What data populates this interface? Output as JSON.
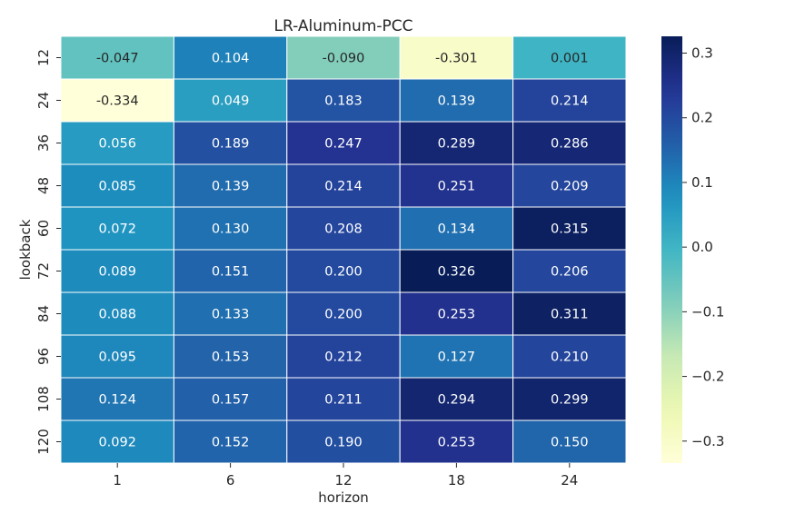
{
  "chart_data": {
    "type": "heatmap",
    "title": "LR-Aluminum-PCC",
    "xlabel": "horizon",
    "ylabel": "lookback",
    "x_categories": [
      "1",
      "6",
      "12",
      "18",
      "24"
    ],
    "y_categories": [
      "12",
      "24",
      "36",
      "48",
      "60",
      "72",
      "84",
      "96",
      "108",
      "120"
    ],
    "values": [
      [
        -0.047,
        0.104,
        -0.09,
        -0.301,
        0.001
      ],
      [
        -0.334,
        0.049,
        0.183,
        0.139,
        0.214
      ],
      [
        0.056,
        0.189,
        0.247,
        0.289,
        0.286
      ],
      [
        0.085,
        0.139,
        0.214,
        0.251,
        0.209
      ],
      [
        0.072,
        0.13,
        0.208,
        0.134,
        0.315
      ],
      [
        0.089,
        0.151,
        0.2,
        0.326,
        0.206
      ],
      [
        0.088,
        0.133,
        0.2,
        0.253,
        0.311
      ],
      [
        0.095,
        0.153,
        0.212,
        0.127,
        0.21
      ],
      [
        0.124,
        0.157,
        0.211,
        0.294,
        0.299
      ],
      [
        0.092,
        0.152,
        0.19,
        0.253,
        0.15
      ]
    ],
    "colormap": "YlGnBu",
    "colorbar": {
      "vmin": -0.334,
      "vmax": 0.326,
      "ticks": [
        0.3,
        0.2,
        0.1,
        0.0,
        -0.1,
        -0.2,
        -0.3
      ],
      "tick_labels": [
        "0.3",
        "0.2",
        "0.1",
        "0.0",
        "−0.1",
        "−0.2",
        "−0.3"
      ]
    },
    "value_format": "3 decimals",
    "grid_line_color": "#ffffff"
  }
}
